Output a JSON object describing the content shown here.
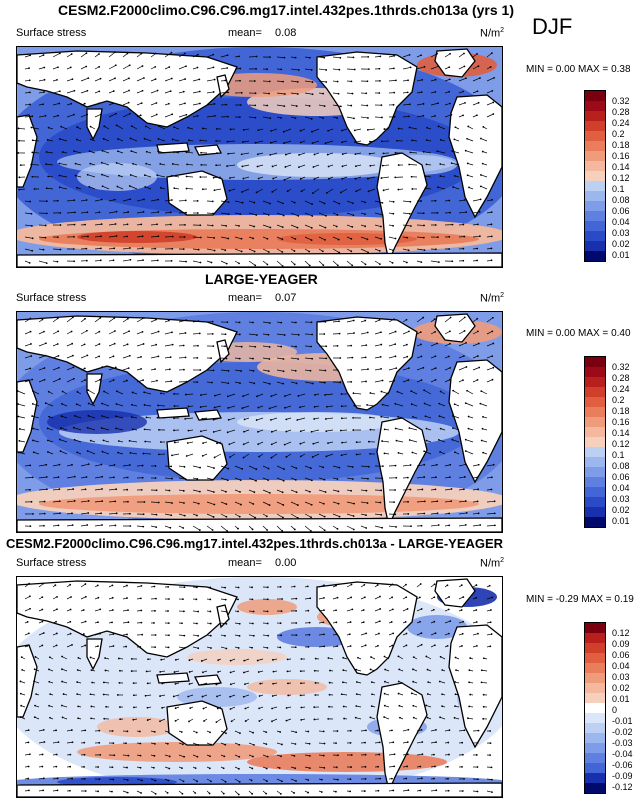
{
  "header": {
    "title": "CESM2.F2000climo.C96.C96.mg17.intel.432pes.1thrds.ch013a (yrs 1)",
    "season": "DJF"
  },
  "colors": {
    "positive": [
      "#f5d0bd",
      "#f3b89d",
      "#ef9c7c",
      "#e97d5c",
      "#df5f40",
      "#cf3f2a",
      "#b8201d",
      "#9c0a17",
      "#7a0010"
    ],
    "negative": [
      "#dbe6f8",
      "#bcd0f4",
      "#9cb7ee",
      "#7e9ce8",
      "#5f80e0",
      "#4266d6",
      "#2a4ac8",
      "#1830ad",
      "#0e1c8c",
      "#000a6c"
    ],
    "white": "#ffffff",
    "land": "#ffffff"
  },
  "panels": [
    {
      "title": "",
      "variable_label": "Surface stress",
      "mean_label": "mean=",
      "mean_value": "0.08",
      "units": "N/m",
      "units_exp": "2",
      "min_label": "MIN =",
      "min_value": "0.00",
      "max_label": "MAX =",
      "max_value": "0.38",
      "colorbar": [
        "0.32",
        "0.28",
        "0.24",
        "0.2",
        "0.18",
        "0.16",
        "0.14",
        "0.12",
        "0.1",
        "0.08",
        "0.06",
        "0.04",
        "0.03",
        "0.02",
        "0.01"
      ]
    },
    {
      "title": "LARGE-YEAGER",
      "variable_label": "Surface stress",
      "mean_label": "mean=",
      "mean_value": "0.07",
      "units": "N/m",
      "units_exp": "2",
      "min_label": "MIN =",
      "min_value": "0.00",
      "max_label": "MAX =",
      "max_value": "0.40",
      "colorbar": [
        "0.32",
        "0.28",
        "0.24",
        "0.2",
        "0.18",
        "0.16",
        "0.14",
        "0.12",
        "0.1",
        "0.08",
        "0.06",
        "0.04",
        "0.03",
        "0.02",
        "0.01"
      ]
    },
    {
      "title": "CESM2.F2000climo.C96.C96.mg17.intel.432pes.1thrds.ch013a - LARGE-YEAGER",
      "variable_label": "Surface stress",
      "mean_label": "mean=",
      "mean_value": "0.00",
      "units": "N/m",
      "units_exp": "2",
      "min_label": "MIN =",
      "min_value": "-0.29",
      "max_label": "MAX =",
      "max_value": "0.19",
      "colorbar": [
        "0.12",
        "0.09",
        "0.06",
        "0.04",
        "0.03",
        "0.02",
        "0.01",
        "0",
        "-0.01",
        "-0.02",
        "-0.03",
        "-0.04",
        "-0.06",
        "-0.09",
        "-0.12"
      ]
    }
  ],
  "chart_data": [
    {
      "type": "heatmap",
      "title": "CESM2.F2000climo.C96.C96.mg17.intel.432pes.1thrds.ch013a (yrs 1)",
      "variable": "Surface stress",
      "units": "N/m^2",
      "season": "DJF",
      "mean": 0.08,
      "min": 0.0,
      "max": 0.38,
      "levels": [
        0.01,
        0.02,
        0.03,
        0.04,
        0.06,
        0.08,
        0.1,
        0.12,
        0.14,
        0.16,
        0.18,
        0.2,
        0.24,
        0.28,
        0.32
      ],
      "overlay": "wind stress vectors"
    },
    {
      "type": "heatmap",
      "title": "LARGE-YEAGER",
      "variable": "Surface stress",
      "units": "N/m^2",
      "mean": 0.07,
      "min": 0.0,
      "max": 0.4,
      "levels": [
        0.01,
        0.02,
        0.03,
        0.04,
        0.06,
        0.08,
        0.1,
        0.12,
        0.14,
        0.16,
        0.18,
        0.2,
        0.24,
        0.28,
        0.32
      ],
      "overlay": "wind stress vectors"
    },
    {
      "type": "heatmap",
      "title": "CESM2.F2000climo.C96.C96.mg17.intel.432pes.1thrds.ch013a - LARGE-YEAGER",
      "variable": "Surface stress",
      "units": "N/m^2",
      "mean": 0.0,
      "min": -0.29,
      "max": 0.19,
      "levels": [
        -0.12,
        -0.09,
        -0.06,
        -0.04,
        -0.03,
        -0.02,
        -0.01,
        0,
        0.01,
        0.02,
        0.03,
        0.04,
        0.06,
        0.09,
        0.12
      ],
      "overlay": "wind stress difference vectors"
    }
  ]
}
